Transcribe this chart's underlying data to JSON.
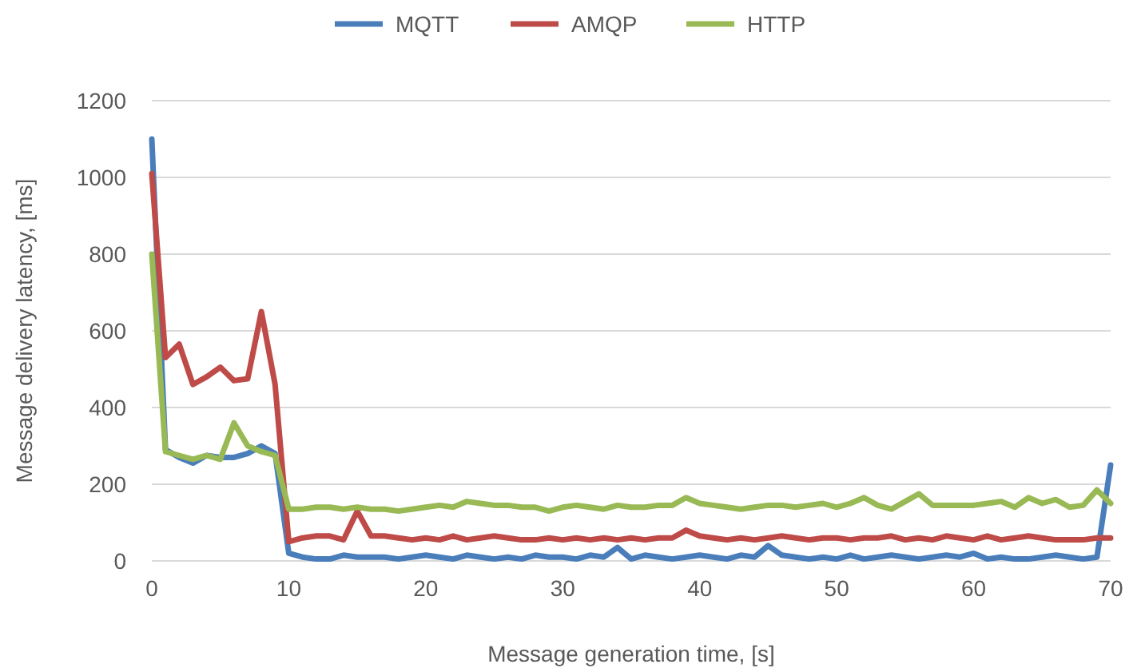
{
  "chart_data": {
    "type": "line",
    "xlabel": "Message generation time, [s]",
    "ylabel": "Message delivery latency, [ms]",
    "x": [
      0,
      1,
      2,
      3,
      4,
      5,
      6,
      7,
      8,
      9,
      10,
      11,
      12,
      13,
      14,
      15,
      16,
      17,
      18,
      19,
      20,
      21,
      22,
      23,
      24,
      25,
      26,
      27,
      28,
      29,
      30,
      31,
      32,
      33,
      34,
      35,
      36,
      37,
      38,
      39,
      40,
      41,
      42,
      43,
      44,
      45,
      46,
      47,
      48,
      49,
      50,
      51,
      52,
      53,
      54,
      55,
      56,
      57,
      58,
      59,
      60,
      61,
      62,
      63,
      64,
      65,
      66,
      67,
      68,
      69,
      70
    ],
    "series": [
      {
        "name": "MQTT",
        "color": "#4a7ebb",
        "values": [
          1100,
          290,
          270,
          255,
          275,
          270,
          270,
          280,
          300,
          280,
          20,
          10,
          5,
          5,
          15,
          10,
          10,
          10,
          5,
          10,
          15,
          10,
          5,
          15,
          10,
          5,
          10,
          5,
          15,
          10,
          10,
          5,
          15,
          10,
          35,
          5,
          15,
          10,
          5,
          10,
          15,
          10,
          5,
          15,
          10,
          40,
          15,
          10,
          5,
          10,
          5,
          15,
          5,
          10,
          15,
          10,
          5,
          10,
          15,
          10,
          20,
          5,
          10,
          5,
          5,
          10,
          15,
          10,
          5,
          10,
          250
        ]
      },
      {
        "name": "AMQP",
        "color": "#be4b48",
        "values": [
          1010,
          530,
          565,
          460,
          480,
          505,
          470,
          475,
          650,
          460,
          50,
          60,
          65,
          65,
          55,
          130,
          65,
          65,
          60,
          55,
          60,
          55,
          65,
          55,
          60,
          65,
          60,
          55,
          55,
          60,
          55,
          60,
          55,
          60,
          55,
          60,
          55,
          60,
          60,
          80,
          65,
          60,
          55,
          60,
          55,
          60,
          65,
          60,
          55,
          60,
          60,
          55,
          60,
          60,
          65,
          55,
          60,
          55,
          65,
          60,
          55,
          65,
          55,
          60,
          65,
          60,
          55,
          55,
          55,
          60,
          60
        ]
      },
      {
        "name": "HTTP",
        "color": "#98b954",
        "values": [
          800,
          285,
          275,
          265,
          275,
          265,
          360,
          300,
          285,
          275,
          135,
          135,
          140,
          140,
          135,
          140,
          135,
          135,
          130,
          135,
          140,
          145,
          140,
          155,
          150,
          145,
          145,
          140,
          140,
          130,
          140,
          145,
          140,
          135,
          145,
          140,
          140,
          145,
          145,
          165,
          150,
          145,
          140,
          135,
          140,
          145,
          145,
          140,
          145,
          150,
          140,
          150,
          165,
          145,
          135,
          155,
          175,
          145,
          145,
          145,
          145,
          150,
          155,
          140,
          165,
          150,
          160,
          140,
          145,
          185,
          150
        ]
      }
    ],
    "xlim": [
      0,
      70
    ],
    "xticks": [
      0,
      10,
      20,
      30,
      40,
      50,
      60,
      70
    ],
    "ylim": [
      0,
      1200
    ],
    "yticks": [
      0,
      200,
      400,
      600,
      800,
      1000,
      1200
    ],
    "grid": "y",
    "legend": "top",
    "marker": "none",
    "line_style": "solid"
  }
}
